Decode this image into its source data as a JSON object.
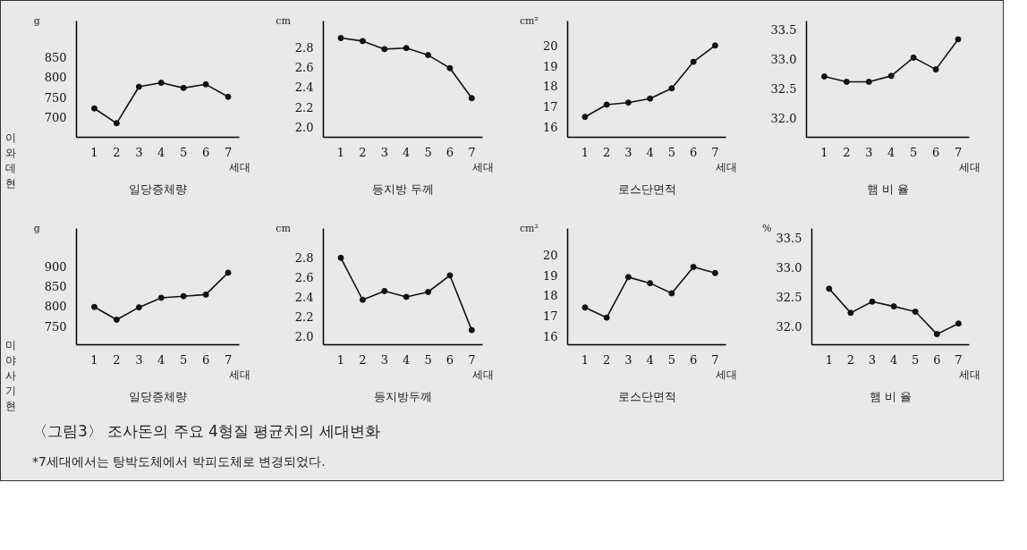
{
  "chart_data": [
    {
      "type": "line",
      "title": "일당증체량",
      "xlabel": "세대",
      "ylabel": "g",
      "annotations": [
        "이와데현"
      ],
      "x": [
        1,
        2,
        3,
        4,
        5,
        6,
        7
      ],
      "xlim": [
        0.2,
        7.5
      ],
      "xticks": [
        1,
        2,
        3,
        4,
        5,
        6,
        7
      ],
      "ylim": [
        650,
        940
      ],
      "yticks": [
        700,
        750,
        800,
        850
      ],
      "grid": false,
      "marker": "circle",
      "line_style": "solid",
      "series": [
        {
          "color": "#111111",
          "values": [
            722,
            685,
            776,
            786,
            773,
            782,
            751
          ]
        }
      ]
    },
    {
      "type": "line",
      "title": "등지방 두께",
      "xlabel": "세대",
      "ylabel": "cm",
      "x": [
        1,
        2,
        3,
        4,
        5,
        6,
        7
      ],
      "xlim": [
        0.2,
        7.5
      ],
      "xticks": [
        1,
        2,
        3,
        4,
        5,
        6,
        7
      ],
      "ylim": [
        1.9,
        3.06
      ],
      "yticks": [
        {
          "value": 2.0,
          "label": "2.0"
        },
        {
          "value": 2.2,
          "label": "2.2"
        },
        {
          "value": 2.4,
          "label": "2.4"
        },
        {
          "value": 2.6,
          "label": "2.6"
        },
        {
          "value": 2.8,
          "label": "2.8"
        }
      ],
      "grid": false,
      "marker": "circle",
      "line_style": "solid",
      "series": [
        {
          "color": "#111111",
          "values": [
            2.89,
            2.86,
            2.78,
            2.79,
            2.72,
            2.59,
            2.29
          ]
        }
      ]
    },
    {
      "type": "line",
      "title": "로스단면적",
      "xlabel": "세대",
      "ylabel": "cm²",
      "x": [
        1,
        2,
        3,
        4,
        5,
        6,
        7
      ],
      "xlim": [
        0.2,
        7.5
      ],
      "xticks": [
        1,
        2,
        3,
        4,
        5,
        6,
        7
      ],
      "ylim": [
        15.5,
        21.2
      ],
      "yticks": [
        16,
        17,
        18,
        19,
        20
      ],
      "grid": false,
      "marker": "circle",
      "line_style": "solid",
      "series": [
        {
          "color": "#111111",
          "values": [
            16.5,
            17.1,
            17.2,
            17.4,
            17.9,
            19.2,
            20.0
          ]
        }
      ]
    },
    {
      "type": "line",
      "title": "햄 비 율",
      "xlabel": "세대",
      "x": [
        1,
        2,
        3,
        4,
        5,
        6,
        7
      ],
      "xlim": [
        0.2,
        7.5
      ],
      "xticks": [
        1,
        2,
        3,
        4,
        5,
        6,
        7
      ],
      "ylim": [
        31.68,
        33.65
      ],
      "yticks": [
        {
          "value": 32.0,
          "label": "32.0"
        },
        {
          "value": 32.5,
          "label": "32.5"
        },
        {
          "value": 33.0,
          "label": "33.0"
        },
        {
          "value": 33.5,
          "label": "33.5"
        }
      ],
      "grid": false,
      "marker": "circle",
      "line_style": "solid",
      "series": [
        {
          "color": "#111111",
          "values": [
            32.71,
            32.62,
            32.62,
            32.72,
            33.03,
            32.83,
            33.34
          ]
        }
      ]
    },
    {
      "type": "line",
      "title": "일당증체량",
      "xlabel": "세대",
      "ylabel": "g",
      "annotations": [
        "미야사기현",
        "〈그림3〉 조사돈의 주요 4형질 평균치의 세대변화",
        "*7세대에서는 탕박도체에서 박피도체로 변경되었다."
      ],
      "x": [
        1,
        2,
        3,
        4,
        5,
        6,
        7
      ],
      "xlim": [
        0.2,
        7.5
      ],
      "xticks": [
        1,
        2,
        3,
        4,
        5,
        6,
        7
      ],
      "ylim": [
        703,
        995
      ],
      "yticks": [
        750,
        800,
        850,
        900
      ],
      "grid": false,
      "marker": "circle",
      "line_style": "solid",
      "series": [
        {
          "color": "#111111",
          "values": [
            798,
            766,
            797,
            821,
            825,
            829,
            884
          ]
        }
      ]
    },
    {
      "type": "line",
      "title": "등지방두께",
      "xlabel": "세대",
      "ylabel": "cm",
      "x": [
        1,
        2,
        3,
        4,
        5,
        6,
        7
      ],
      "xlim": [
        0.2,
        7.5
      ],
      "xticks": [
        1,
        2,
        3,
        4,
        5,
        6,
        7
      ],
      "ylim": [
        1.91,
        3.1
      ],
      "yticks": [
        {
          "value": 2.0,
          "label": "2.0"
        },
        {
          "value": 2.2,
          "label": "2.2"
        },
        {
          "value": 2.4,
          "label": "2.4"
        },
        {
          "value": 2.6,
          "label": "2.6"
        },
        {
          "value": 2.8,
          "label": "2.8"
        }
      ],
      "grid": false,
      "marker": "circle",
      "line_style": "solid",
      "series": [
        {
          "color": "#111111",
          "values": [
            2.8,
            2.37,
            2.46,
            2.4,
            2.45,
            2.62,
            2.06
          ]
        }
      ]
    },
    {
      "type": "line",
      "title": "로스단면적",
      "xlabel": "세대",
      "ylabel": "cm²",
      "x": [
        1,
        2,
        3,
        4,
        5,
        6,
        7
      ],
      "xlim": [
        0.2,
        7.5
      ],
      "xticks": [
        1,
        2,
        3,
        4,
        5,
        6,
        7
      ],
      "ylim": [
        15.56,
        21.3
      ],
      "yticks": [
        16,
        17,
        18,
        19,
        20
      ],
      "grid": false,
      "marker": "circle",
      "line_style": "solid",
      "series": [
        {
          "color": "#111111",
          "values": [
            17.4,
            16.9,
            18.9,
            18.6,
            18.1,
            19.4,
            19.1
          ]
        }
      ]
    },
    {
      "type": "line",
      "title": "햄 비 율",
      "xlabel": "세대",
      "ylabel": "%",
      "x": [
        1,
        2,
        3,
        4,
        5,
        6,
        7
      ],
      "xlim": [
        0.2,
        7.5
      ],
      "xticks": [
        1,
        2,
        3,
        4,
        5,
        6,
        7
      ],
      "ylim": [
        31.69,
        33.66
      ],
      "yticks": [
        {
          "value": 32.0,
          "label": "32.0"
        },
        {
          "value": 32.5,
          "label": "32.5"
        },
        {
          "value": 33.0,
          "label": "33.0"
        },
        {
          "value": 33.5,
          "label": "33.5"
        }
      ],
      "grid": false,
      "marker": "circle",
      "line_style": "solid",
      "series": [
        {
          "color": "#111111",
          "values": [
            32.64,
            32.23,
            32.42,
            32.34,
            32.25,
            31.87,
            32.05
          ]
        }
      ]
    }
  ]
}
